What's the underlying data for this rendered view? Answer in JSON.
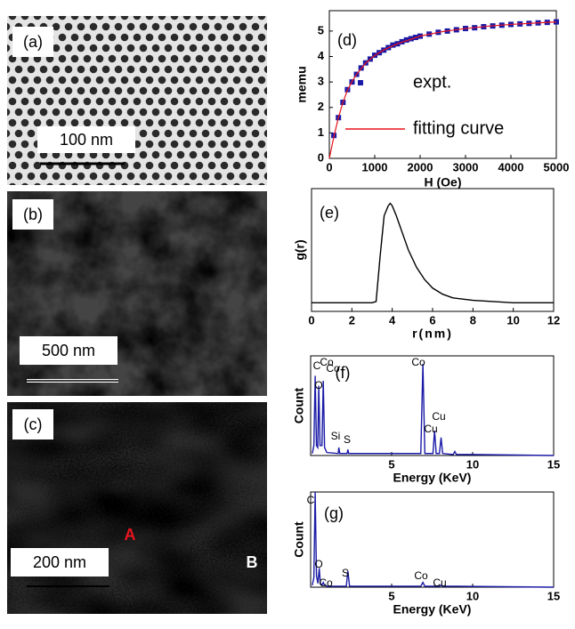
{
  "images": [
    {
      "label": "(a)",
      "scale_bar": "100 nm"
    },
    {
      "label": "(b)",
      "scale_bar": "500 nm"
    },
    {
      "label": "(c)",
      "scale_bar": "200 nm",
      "markers": [
        "A",
        "B"
      ]
    }
  ],
  "chart_data": [
    {
      "type": "line",
      "panel_label": "(d)",
      "x_label": "H (Oe)",
      "y_label": "memu",
      "xlim": [
        0,
        5000
      ],
      "ylim": [
        0,
        5.8
      ],
      "xticks": [
        0,
        1000,
        2000,
        3000,
        4000,
        5000
      ],
      "yticks": [
        0,
        1,
        2,
        3,
        4,
        5
      ],
      "series": [
        {
          "name": "expt.",
          "color": "#1a1aa6",
          "mode": "markers",
          "x": [
            100,
            200,
            300,
            400,
            500,
            600,
            700,
            800,
            900,
            1000,
            1100,
            1200,
            1300,
            1400,
            1500,
            1600,
            1700,
            1800,
            1900,
            2000,
            2200,
            2400,
            2600,
            2800,
            3000,
            3200,
            3400,
            3600,
            3800,
            4000,
            4200,
            4400,
            4600,
            4800,
            5000
          ],
          "values": [
            0.9,
            1.6,
            2.2,
            2.7,
            3.0,
            3.3,
            3.55,
            3.75,
            3.9,
            4.05,
            4.15,
            4.25,
            4.35,
            4.45,
            4.5,
            4.58,
            4.65,
            4.7,
            4.75,
            4.8,
            4.88,
            4.95,
            5.0,
            5.05,
            5.1,
            5.13,
            5.17,
            5.2,
            5.23,
            5.26,
            5.28,
            5.3,
            5.32,
            5.34,
            5.36
          ]
        },
        {
          "name": "fitting curve",
          "color": "#e8141e",
          "mode": "line",
          "x": [
            0,
            100,
            200,
            300,
            400,
            500,
            600,
            800,
            1000,
            1200,
            1500,
            2000,
            2500,
            3000,
            3500,
            4000,
            4500,
            5000
          ],
          "values": [
            0,
            0.85,
            1.6,
            2.2,
            2.68,
            3.02,
            3.3,
            3.74,
            4.04,
            4.26,
            4.5,
            4.8,
            4.98,
            5.1,
            5.19,
            5.26,
            5.31,
            5.36
          ]
        }
      ]
    },
    {
      "type": "line",
      "panel_label": "(e)",
      "x_label": "r(nm)",
      "y_label": "g(r)",
      "xlim": [
        0,
        12
      ],
      "ylim": [
        0,
        1
      ],
      "xticks": [
        0,
        2,
        4,
        6,
        8,
        10,
        12
      ],
      "series": [
        {
          "color": "#000000",
          "mode": "line",
          "x": [
            0,
            1,
            2,
            3,
            3.2,
            3.4,
            3.6,
            3.8,
            3.9,
            4.0,
            4.2,
            4.5,
            4.8,
            5.2,
            5.6,
            6.0,
            6.5,
            7,
            8,
            9,
            10,
            12
          ],
          "values": [
            0.07,
            0.07,
            0.07,
            0.07,
            0.08,
            0.45,
            0.78,
            0.86,
            0.88,
            0.86,
            0.78,
            0.64,
            0.5,
            0.36,
            0.26,
            0.19,
            0.14,
            0.11,
            0.09,
            0.08,
            0.07,
            0.07
          ]
        }
      ]
    },
    {
      "type": "line",
      "panel_label": "(f)",
      "x_label": "Energy (KeV)",
      "y_label": "Count",
      "xlim": [
        0,
        15
      ],
      "ylim": [
        0,
        100
      ],
      "xticks": [
        5,
        10,
        15
      ],
      "annotations": [
        "C",
        "Co",
        "O",
        "Co",
        "Si",
        "S",
        "Co",
        "Cu",
        "Cu"
      ],
      "series": [
        {
          "color": "#1a1aa6",
          "mode": "line",
          "x": [
            0.1,
            0.2,
            0.28,
            0.36,
            0.44,
            0.5,
            0.58,
            0.7,
            0.78,
            0.86,
            1.0,
            1.7,
            1.74,
            1.8,
            2.25,
            2.3,
            2.35,
            3,
            6.8,
            6.93,
            7.05,
            7.55,
            7.65,
            7.75,
            7.95,
            8.05,
            8.15,
            8.8,
            8.9,
            9.0,
            10,
            15
          ],
          "values": [
            2,
            10,
            80,
            10,
            8,
            70,
            10,
            10,
            75,
            8,
            3,
            2,
            8,
            2,
            2,
            6,
            2,
            2,
            2,
            92,
            2,
            2,
            25,
            2,
            2,
            18,
            2,
            1,
            4,
            1,
            1,
            0
          ]
        }
      ]
    },
    {
      "type": "line",
      "panel_label": "(g)",
      "x_label": "Energy (KeV)",
      "y_label": "Count",
      "xlim": [
        0,
        15
      ],
      "ylim": [
        0,
        100
      ],
      "xticks": [
        5,
        10,
        15
      ],
      "annotations": [
        "C",
        "O",
        "Co",
        "S",
        "Co",
        "Cu"
      ],
      "series": [
        {
          "color": "#1a1aa6",
          "mode": "line",
          "x": [
            0.1,
            0.2,
            0.28,
            0.36,
            0.45,
            0.53,
            0.6,
            0.7,
            0.78,
            0.86,
            1,
            2.2,
            2.3,
            2.4,
            3,
            6.8,
            6.93,
            7.05,
            7.95,
            8.05,
            8.15,
            9,
            15
          ],
          "values": [
            2,
            10,
            100,
            12,
            4,
            20,
            4,
            2,
            5,
            2,
            1,
            1,
            17,
            1,
            1,
            1,
            5,
            1,
            1,
            2,
            1,
            1,
            0
          ]
        }
      ]
    }
  ]
}
